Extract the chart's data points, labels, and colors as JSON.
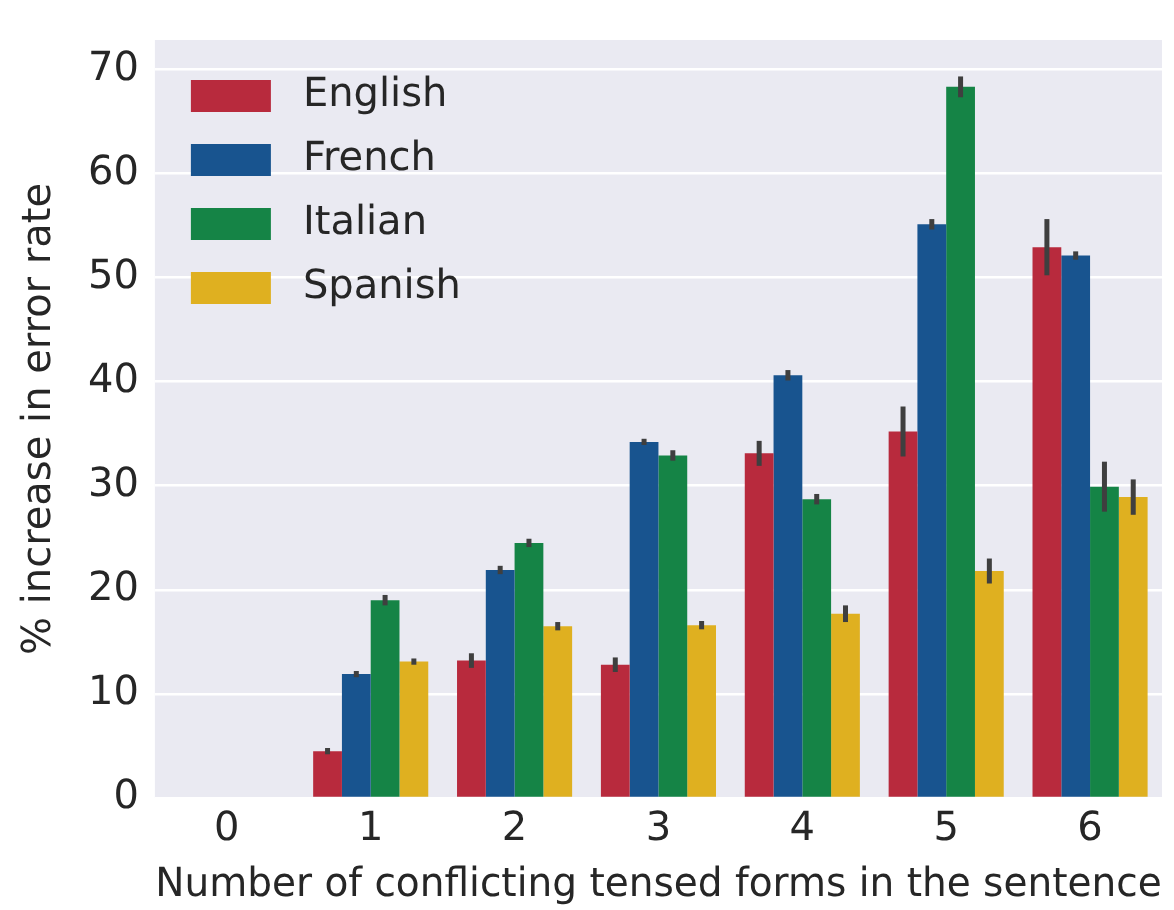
{
  "chart_data": {
    "type": "bar",
    "xlabel": "Number of conflicting tensed forms in the sentence",
    "ylabel": "% increase in error rate",
    "categories": [
      "0",
      "1",
      "2",
      "3",
      "4",
      "5",
      "6"
    ],
    "series": [
      {
        "name": "English",
        "color": "#b82a3d",
        "values": [
          null,
          4.5,
          13.2,
          12.8,
          33.1,
          35.2,
          52.9
        ],
        "errors": [
          null,
          0.3,
          0.7,
          0.7,
          1.2,
          2.4,
          2.7
        ]
      },
      {
        "name": "French",
        "color": "#18548f",
        "values": [
          null,
          11.9,
          21.9,
          34.2,
          40.6,
          55.1,
          52.1
        ],
        "errors": [
          null,
          0.3,
          0.4,
          0.3,
          0.5,
          0.5,
          0.4
        ]
      },
      {
        "name": "Italian",
        "color": "#158446",
        "values": [
          null,
          19.0,
          24.5,
          32.9,
          28.7,
          68.3,
          29.9
        ],
        "errors": [
          null,
          0.5,
          0.4,
          0.5,
          0.5,
          1.0,
          2.4
        ]
      },
      {
        "name": "Spanish",
        "color": "#dfb020",
        "values": [
          null,
          13.1,
          16.5,
          16.6,
          17.7,
          21.8,
          28.9
        ],
        "errors": [
          null,
          0.3,
          0.4,
          0.4,
          0.8,
          1.2,
          1.7
        ]
      }
    ],
    "ylim": [
      0,
      72.8
    ],
    "yticks": [
      0,
      10,
      20,
      30,
      40,
      50,
      60,
      70
    ],
    "grid": "y",
    "legend": "top left"
  }
}
